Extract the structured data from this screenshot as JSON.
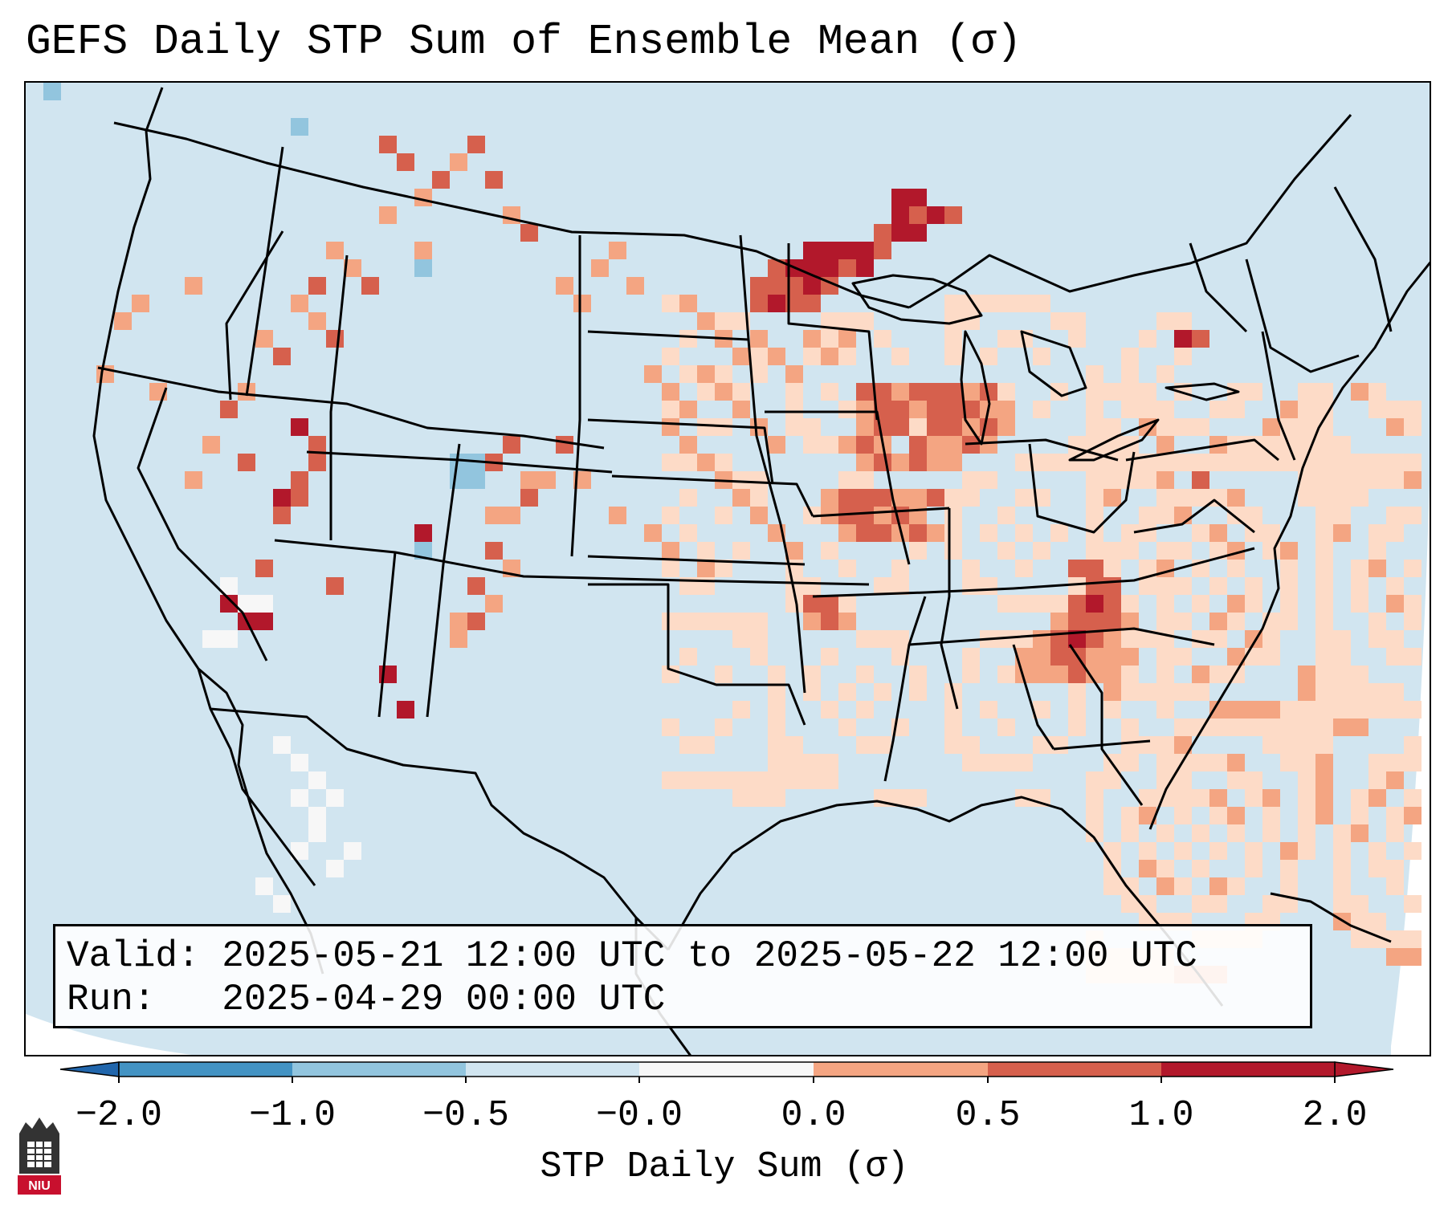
{
  "title": "GEFS Daily STP Sum of Ensemble Mean (σ)",
  "info": {
    "valid_label": "Valid:",
    "valid_value": "2025-05-21 12:00 UTC to 2025-05-22 12:00 UTC",
    "run_label": "Run:",
    "run_value": "2025-04-29 00:00 UTC"
  },
  "colorbar": {
    "label": "STP Daily Sum (σ)",
    "ticks": [
      "−2.0",
      "−1.0",
      "−0.5",
      "−0.0",
      "0.0",
      "0.5",
      "1.0",
      "2.0"
    ],
    "bins": [
      {
        "range": "<-2.0",
        "color": "#2166ac"
      },
      {
        "range": "-2.0 to -1.0",
        "color": "#4393c3"
      },
      {
        "range": "-1.0 to -0.5",
        "color": "#92c5de"
      },
      {
        "range": "-0.5 to 0.0",
        "color": "#d1e5f0"
      },
      {
        "range": "0.0",
        "color": "#f7f7f7"
      },
      {
        "range": "0.0 to 0.5",
        "color": "#fddbc7"
      },
      {
        "range": "0.5 to 1.0",
        "color": "#f4a582"
      },
      {
        "range": "1.0 to 2.0",
        "color": "#d6604d"
      },
      {
        "range": ">2.0",
        "color": "#b2182b"
      }
    ]
  },
  "logo_text": "NIU",
  "colors": {
    "background_field": "#d1e5f0",
    "light_positive": "#fddbc7",
    "mid_positive": "#f4a582",
    "high_positive": "#d6604d",
    "very_high_positive": "#b2182b",
    "light_negative": "#92c5de",
    "logo_red": "#c8102e"
  }
}
